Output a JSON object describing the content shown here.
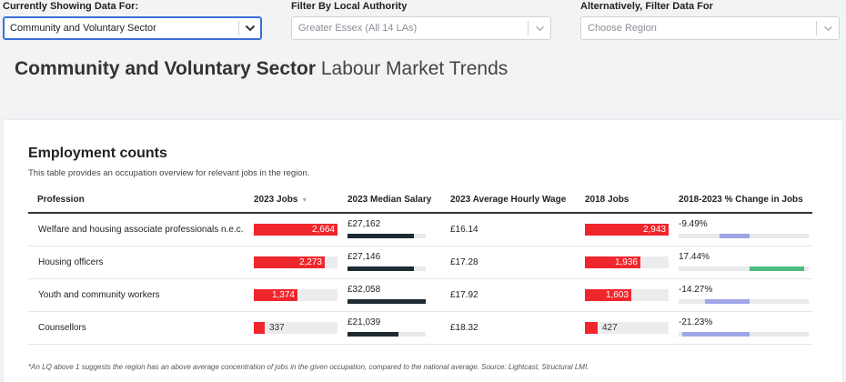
{
  "filters": {
    "current": {
      "label": "Currently Showing Data For:",
      "value": "Community and Voluntary Sector"
    },
    "local_authority": {
      "label": "Filter By Local Authority",
      "value": "Greater Essex (All 14 LAs)"
    },
    "region": {
      "label": "Alternatively, Filter Data For",
      "placeholder": "Choose Region"
    }
  },
  "page_title": {
    "bold": "Community and Voluntary Sector",
    "rest": " Labour Market Trends"
  },
  "card": {
    "title": "Employment counts",
    "subtitle": "This table provides an occupation overview for relevant jobs in the region.",
    "footnote": "*An LQ above 1 suggests the region has an above average concentration of jobs in the given occupation, compared to the national average. Source: Lightcast, Structural LMI."
  },
  "table": {
    "headers": {
      "profession": "Profession",
      "jobs_2023": "2023 Jobs",
      "median_salary": "2023 Median Salary",
      "hourly_wage": "2023 Average Hourly Wage",
      "jobs_2018": "2018 Jobs",
      "change": "2018-2023 % Change in Jobs"
    },
    "rows": [
      {
        "profession": "Welfare and housing associate professionals n.e.c.",
        "jobs_2023": "2,664",
        "jobs_2023_frac": 1.0,
        "salary": "£27,162",
        "salary_frac": 0.85,
        "wage": "£16.14",
        "jobs_2018": "2,943",
        "jobs_2018_frac": 1.0,
        "change": "-9.49%",
        "change_pct": -9.49
      },
      {
        "profession": "Housing officers",
        "jobs_2023": "2,273",
        "jobs_2023_frac": 0.85,
        "salary": "£27,146",
        "salary_frac": 0.85,
        "wage": "£17.28",
        "jobs_2018": "1,936",
        "jobs_2018_frac": 0.66,
        "change": "17.44%",
        "change_pct": 17.44
      },
      {
        "profession": "Youth and community workers",
        "jobs_2023": "1,374",
        "jobs_2023_frac": 0.52,
        "salary": "£32,058",
        "salary_frac": 1.0,
        "wage": "£17.92",
        "jobs_2018": "1,603",
        "jobs_2018_frac": 0.55,
        "change": "-14.27%",
        "change_pct": -14.27
      },
      {
        "profession": "Counsellors",
        "jobs_2023": "337",
        "jobs_2023_frac": 0.13,
        "salary": "£21,039",
        "salary_frac": 0.65,
        "wage": "£18.32",
        "jobs_2018": "427",
        "jobs_2018_frac": 0.15,
        "change": "-21.23%",
        "change_pct": -21.23
      }
    ]
  },
  "colors": {
    "jobs_bar": "#f0262d",
    "salary_bar": "#1f2b33",
    "change_negative": "#9ea6e6",
    "change_positive": "#4fba7f",
    "select_focus": "#3b6fd8"
  }
}
